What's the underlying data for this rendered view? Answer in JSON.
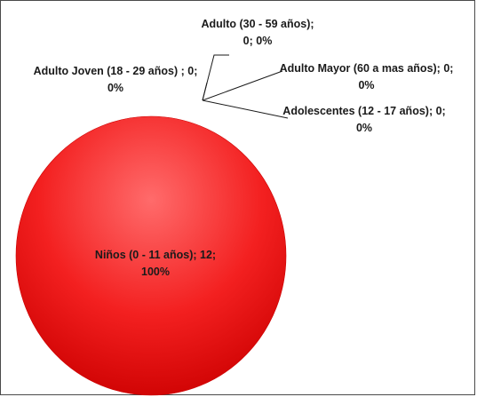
{
  "colors": {
    "slice_light": "#ff6b6b",
    "slice_mid": "#f32020",
    "slice_dark": "#cc0000",
    "leader_line": "#1a1a1a"
  },
  "chart_data": {
    "type": "pie",
    "categories": [
      "Niños (0 - 11 años)",
      "Adolescentes (12 - 17 años)",
      "Adulto Joven (18 - 29 años)",
      "Adulto (30 - 59 años)",
      "Adulto Mayor (60 a mas años)"
    ],
    "values": [
      12,
      0,
      0,
      0,
      0
    ],
    "percentages": [
      100,
      0,
      0,
      0,
      0
    ],
    "data_labels": [
      "Niños (0 - 11 años); 12; 100%",
      "Adolescentes (12 - 17 años); 0; 0%",
      "Adulto Joven (18 - 29 años) ; 0; 0%",
      "Adulto (30 - 59 años); 0; 0%",
      "Adulto Mayor (60 a mas años); 0; 0%"
    ],
    "title": "",
    "legend": "none"
  }
}
